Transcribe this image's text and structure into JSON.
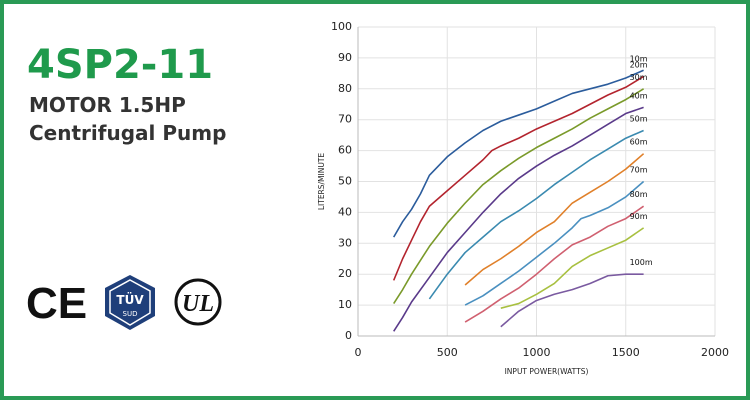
{
  "product": {
    "model": "4SP2-11",
    "motor": "MOTOR 1.5HP",
    "kind": "Centrifugal Pump"
  },
  "certifications": {
    "ce": "CE",
    "tuv": "TÜV",
    "sud": "SUD",
    "ul": "UL"
  },
  "chart_data": {
    "type": "line",
    "x_label": "INPUT POWER(WATTS)",
    "y_label": "LITERS/MINUTE",
    "xlim": [
      0,
      2000
    ],
    "xticks": [
      0,
      500,
      1000,
      1500,
      2000
    ],
    "ylim": [
      0,
      100
    ],
    "yticks": [
      0,
      10,
      20,
      30,
      40,
      50,
      60,
      70,
      80,
      90,
      100
    ],
    "grid": true,
    "series": [
      {
        "name": "10m",
        "color": "#2b5c9c",
        "x": [
          200,
          250,
          300,
          350,
          400,
          450,
          500,
          600,
          700,
          800,
          900,
          1000,
          1100,
          1200,
          1300,
          1400,
          1500,
          1600
        ],
        "values": [
          32,
          37,
          41,
          46,
          52,
          55,
          58,
          62.5,
          66.5,
          69.5,
          71.5,
          73.5,
          76,
          78.5,
          80,
          81.5,
          83.5,
          86
        ]
      },
      {
        "name": "20m",
        "color": "#b3242e",
        "x": [
          200,
          250,
          300,
          350,
          400,
          500,
          600,
          700,
          750,
          800,
          900,
          1000,
          1100,
          1200,
          1300,
          1400,
          1500,
          1600
        ],
        "values": [
          18,
          25,
          31,
          37,
          42,
          47,
          52,
          57,
          60,
          61.5,
          64,
          67,
          69.5,
          72,
          75,
          78,
          80.5,
          84
        ]
      },
      {
        "name": "30m",
        "color": "#7a9a2a",
        "x": [
          200,
          250,
          300,
          400,
          500,
          600,
          700,
          800,
          900,
          1000,
          1100,
          1200,
          1300,
          1400,
          1500,
          1600
        ],
        "values": [
          10.5,
          15,
          20,
          29,
          36.5,
          43,
          49,
          53.5,
          57.5,
          61,
          64,
          67,
          70.5,
          73.5,
          76.5,
          80
        ]
      },
      {
        "name": "40m",
        "color": "#5a3a8a",
        "x": [
          200,
          250,
          300,
          400,
          500,
          600,
          700,
          800,
          900,
          1000,
          1100,
          1200,
          1300,
          1400,
          1500,
          1600
        ],
        "values": [
          1.5,
          6,
          11,
          19,
          27,
          33.5,
          40,
          46,
          51,
          55,
          58.5,
          61.5,
          65,
          68.5,
          72,
          74
        ]
      },
      {
        "name": "50m",
        "color": "#3a8ab0",
        "x": [
          400,
          500,
          600,
          700,
          800,
          900,
          1000,
          1100,
          1200,
          1300,
          1400,
          1500,
          1600
        ],
        "values": [
          12,
          20,
          27,
          32,
          37,
          40.5,
          44.5,
          49,
          53,
          57,
          60.5,
          64,
          66.5
        ]
      },
      {
        "name": "60m",
        "color": "#e0802a",
        "x": [
          600,
          700,
          800,
          900,
          1000,
          1100,
          1200,
          1300,
          1400,
          1500,
          1600
        ],
        "values": [
          16.5,
          21.5,
          25,
          29,
          33.5,
          37,
          43,
          46.5,
          50,
          54,
          59
        ]
      },
      {
        "name": "70m",
        "color": "#4a90c0",
        "x": [
          600,
          700,
          800,
          900,
          1000,
          1100,
          1200,
          1250,
          1300,
          1400,
          1500,
          1600
        ],
        "values": [
          10,
          13,
          17,
          21,
          25.5,
          30,
          35,
          38,
          39,
          41.5,
          45,
          50
        ]
      },
      {
        "name": "80m",
        "color": "#d06070",
        "x": [
          600,
          700,
          800,
          900,
          1000,
          1100,
          1200,
          1300,
          1400,
          1500,
          1600
        ],
        "values": [
          4.5,
          8,
          12,
          15.5,
          20,
          25,
          29.5,
          32,
          35.5,
          38,
          42
        ]
      },
      {
        "name": "90m",
        "color": "#a8c040",
        "x": [
          800,
          900,
          1000,
          1100,
          1200,
          1300,
          1400,
          1500,
          1600
        ],
        "values": [
          9,
          10.5,
          13.5,
          17,
          22.5,
          26,
          28.5,
          31,
          35
        ]
      },
      {
        "name": "100m",
        "color": "#7a5aa0",
        "x": [
          800,
          900,
          1000,
          1100,
          1200,
          1300,
          1400,
          1500,
          1600
        ],
        "values": [
          3,
          8,
          11.5,
          13.5,
          15,
          17,
          19.5,
          20,
          20
        ]
      }
    ]
  }
}
